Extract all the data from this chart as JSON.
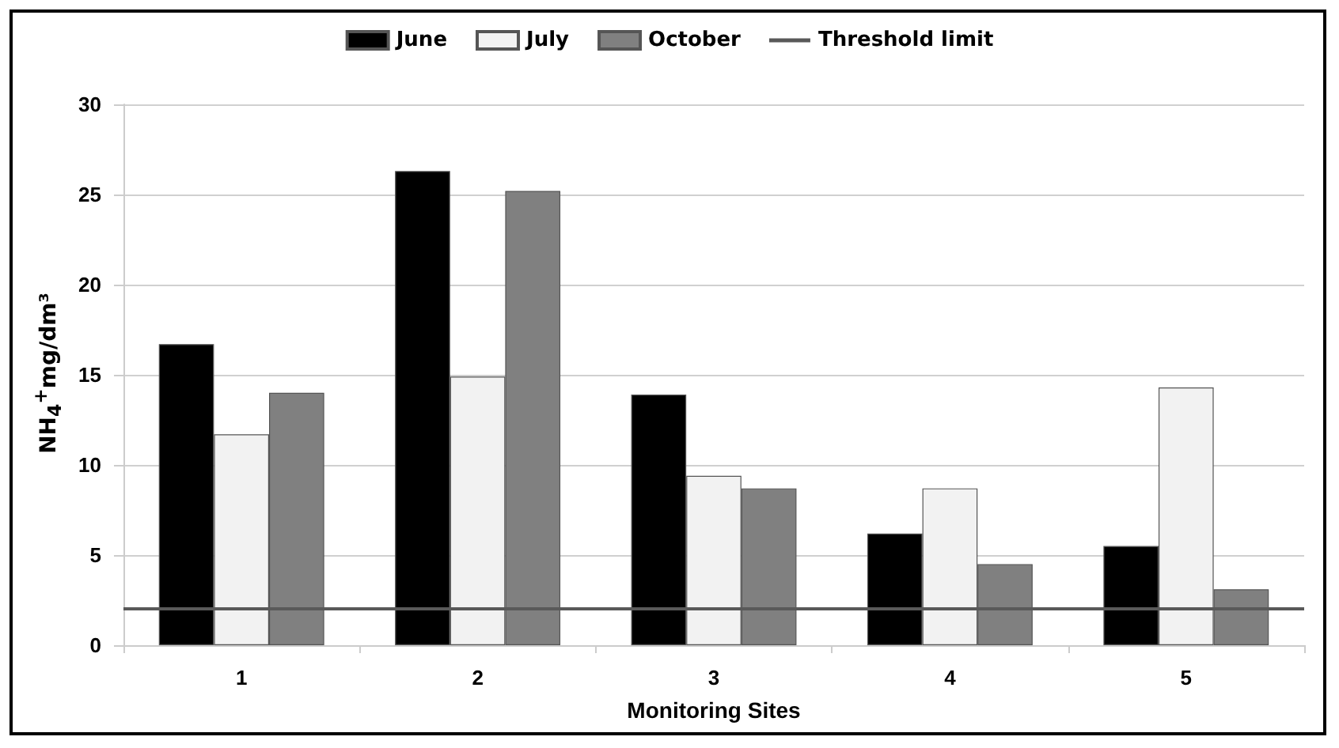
{
  "chart_data": {
    "type": "bar",
    "xlabel": "Monitoring Sites",
    "ylabel": "NH$_{4}$$^{+}$mg/dm³",
    "categories": [
      "1",
      "2",
      "3",
      "4",
      "5"
    ],
    "series": [
      {
        "name": "June",
        "color": "#000000",
        "values": [
          16.7,
          26.3,
          13.9,
          6.2,
          5.5
        ]
      },
      {
        "name": "July",
        "color": "#f2f2f2",
        "values": [
          11.7,
          14.9,
          9.4,
          8.7,
          14.3
        ]
      },
      {
        "name": "October",
        "color": "#808080",
        "values": [
          14.0,
          25.2,
          8.7,
          4.5,
          3.1
        ]
      }
    ],
    "ref_lines": [
      {
        "axis": "y",
        "value": 2,
        "label": "Threshold limit",
        "color": "#595959",
        "line_style": "solid"
      }
    ],
    "ylim": [
      0,
      30
    ],
    "yticks": [
      0,
      5,
      10,
      15,
      20,
      25,
      30
    ],
    "grid": "y",
    "legend": "top"
  }
}
